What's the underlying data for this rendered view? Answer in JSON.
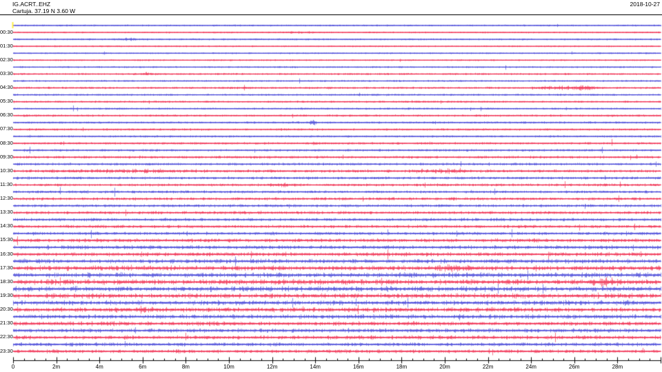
{
  "header": {
    "station": "IG.ACRT..EHZ",
    "location": "Cartuja. 37.19 N 3.60 W",
    "date": "2018-10-27"
  },
  "colors": {
    "trace_blue": "#2a2ad2",
    "trace_red": "#ee0a32",
    "axis": "#000000",
    "text": "#000000",
    "start_marker": "#ffee44",
    "background": "#ffffff"
  },
  "chart_data": {
    "type": "line",
    "subtype": "helicorder",
    "title": "IG.ACRT..EHZ",
    "subtitle": "Cartuja. 37.19 N 3.60 W",
    "date": "2018-10-27",
    "x_axis": {
      "unit": "minutes",
      "range_minutes": [
        0,
        30
      ],
      "major_tick_minutes": 2,
      "minor_tick_minutes": 0.5,
      "tick_labels": [
        "0",
        "2m",
        "4m",
        "6m",
        "8m",
        "10m",
        "12m",
        "14m",
        "16m",
        "18m",
        "20m",
        "22m",
        "24m",
        "26m",
        "28m"
      ],
      "grid": false
    },
    "y_axis": {
      "minutes_per_row": 30,
      "rows_per_hour": 2,
      "labeled_rows": [
        "00:30",
        "01:30",
        "02:30",
        "03:30",
        "04:30",
        "05:30",
        "06:30",
        "07:30",
        "08:30",
        "09:30",
        "10:30",
        "11:30",
        "12:30",
        "13:30",
        "14:30",
        "15:30",
        "16:30",
        "17:30",
        "18:30",
        "19:30",
        "20:30",
        "21:30",
        "22:30",
        "23:30"
      ]
    },
    "rows": [
      {
        "time": "00:00",
        "color": "blue",
        "amp": 0.7,
        "label": ""
      },
      {
        "time": "00:30",
        "color": "red",
        "amp": 0.6,
        "label": "00:30"
      },
      {
        "time": "01:00",
        "color": "blue",
        "amp": 0.7,
        "label": ""
      },
      {
        "time": "01:30",
        "color": "red",
        "amp": 0.6,
        "label": "01:30"
      },
      {
        "time": "02:00",
        "color": "blue",
        "amp": 0.6,
        "label": ""
      },
      {
        "time": "02:30",
        "color": "red",
        "amp": 0.6,
        "label": "02:30"
      },
      {
        "time": "03:00",
        "color": "blue",
        "amp": 0.7,
        "label": ""
      },
      {
        "time": "03:30",
        "color": "red",
        "amp": 0.8,
        "label": "03:30"
      },
      {
        "time": "04:00",
        "color": "blue",
        "amp": 0.7,
        "label": ""
      },
      {
        "time": "04:30",
        "color": "red",
        "amp": 0.9,
        "label": "04:30"
      },
      {
        "time": "05:00",
        "color": "blue",
        "amp": 0.8,
        "label": ""
      },
      {
        "time": "05:30",
        "color": "red",
        "amp": 0.8,
        "label": "05:30"
      },
      {
        "time": "06:00",
        "color": "blue",
        "amp": 0.8,
        "label": ""
      },
      {
        "time": "06:30",
        "color": "red",
        "amp": 0.9,
        "label": "06:30"
      },
      {
        "time": "07:00",
        "color": "blue",
        "amp": 0.9,
        "label": ""
      },
      {
        "time": "07:30",
        "color": "red",
        "amp": 0.9,
        "label": "07:30"
      },
      {
        "time": "08:00",
        "color": "blue",
        "amp": 0.9,
        "label": ""
      },
      {
        "time": "08:30",
        "color": "red",
        "amp": 1.0,
        "label": "08:30"
      },
      {
        "time": "09:00",
        "color": "blue",
        "amp": 1.0,
        "label": ""
      },
      {
        "time": "09:30",
        "color": "red",
        "amp": 1.1,
        "label": "09:30"
      },
      {
        "time": "10:00",
        "color": "blue",
        "amp": 1.1,
        "label": ""
      },
      {
        "time": "10:30",
        "color": "red",
        "amp": 1.3,
        "label": "10:30"
      },
      {
        "time": "11:00",
        "color": "blue",
        "amp": 1.2,
        "label": ""
      },
      {
        "time": "11:30",
        "color": "red",
        "amp": 1.2,
        "label": "11:30"
      },
      {
        "time": "12:00",
        "color": "blue",
        "amp": 1.2,
        "label": ""
      },
      {
        "time": "12:30",
        "color": "red",
        "amp": 1.3,
        "label": "12:30"
      },
      {
        "time": "13:00",
        "color": "blue",
        "amp": 1.3,
        "label": ""
      },
      {
        "time": "13:30",
        "color": "red",
        "amp": 1.4,
        "label": "13:30"
      },
      {
        "time": "14:00",
        "color": "blue",
        "amp": 1.4,
        "label": ""
      },
      {
        "time": "14:30",
        "color": "red",
        "amp": 1.4,
        "label": "14:30"
      },
      {
        "time": "15:00",
        "color": "blue",
        "amp": 1.5,
        "label": ""
      },
      {
        "time": "15:30",
        "color": "red",
        "amp": 1.7,
        "label": "15:30"
      },
      {
        "time": "16:00",
        "color": "blue",
        "amp": 1.8,
        "label": ""
      },
      {
        "time": "16:30",
        "color": "red",
        "amp": 1.9,
        "label": "16:30"
      },
      {
        "time": "17:00",
        "color": "blue",
        "amp": 2.1,
        "label": ""
      },
      {
        "time": "17:30",
        "color": "red",
        "amp": 2.3,
        "label": "17:30"
      },
      {
        "time": "18:00",
        "color": "blue",
        "amp": 2.4,
        "label": ""
      },
      {
        "time": "18:30",
        "color": "red",
        "amp": 2.5,
        "label": "18:30"
      },
      {
        "time": "19:00",
        "color": "blue",
        "amp": 2.5,
        "label": ""
      },
      {
        "time": "19:30",
        "color": "red",
        "amp": 2.4,
        "label": "19:30"
      },
      {
        "time": "20:00",
        "color": "blue",
        "amp": 2.3,
        "label": ""
      },
      {
        "time": "20:30",
        "color": "red",
        "amp": 2.2,
        "label": "20:30"
      },
      {
        "time": "21:00",
        "color": "blue",
        "amp": 2.1,
        "label": ""
      },
      {
        "time": "21:30",
        "color": "red",
        "amp": 2.0,
        "label": "21:30"
      },
      {
        "time": "22:00",
        "color": "blue",
        "amp": 1.9,
        "label": ""
      },
      {
        "time": "22:30",
        "color": "red",
        "amp": 1.8,
        "label": "22:30"
      },
      {
        "time": "23:00",
        "color": "blue",
        "amp": 1.7,
        "label": ""
      },
      {
        "time": "23:30",
        "color": "red",
        "amp": 1.7,
        "label": "23:30"
      }
    ],
    "events": [
      {
        "row": 1,
        "minute": 13.2,
        "width": 0.6,
        "gain": 2.0
      },
      {
        "row": 2,
        "minute": 5.2,
        "width": 0.3,
        "gain": 2.2
      },
      {
        "row": 7,
        "minute": 6.1,
        "width": 0.3,
        "gain": 2.2
      },
      {
        "row": 9,
        "minute": 25.4,
        "width": 0.9,
        "gain": 2.8
      },
      {
        "row": 9,
        "minute": 26.6,
        "width": 0.3,
        "gain": 2.0
      },
      {
        "row": 14,
        "minute": 13.9,
        "width": 0.08,
        "gain": 6.0
      },
      {
        "row": 17,
        "minute": 14.0,
        "width": 0.1,
        "gain": 3.0
      },
      {
        "row": 21,
        "minute": 5.5,
        "width": 2.5,
        "gain": 1.6
      },
      {
        "row": 21,
        "minute": 20.0,
        "width": 1.0,
        "gain": 1.8
      },
      {
        "row": 23,
        "minute": 12.5,
        "width": 0.4,
        "gain": 2.0
      },
      {
        "row": 35,
        "minute": 20.5,
        "width": 0.5,
        "gain": 1.8
      },
      {
        "row": 37,
        "minute": 27.5,
        "width": 0.4,
        "gain": 2.0
      },
      {
        "row": 41,
        "minute": 6.0,
        "width": 0.5,
        "gain": 1.8
      }
    ],
    "start_marker": {
      "row": 0,
      "minute": 0
    }
  }
}
